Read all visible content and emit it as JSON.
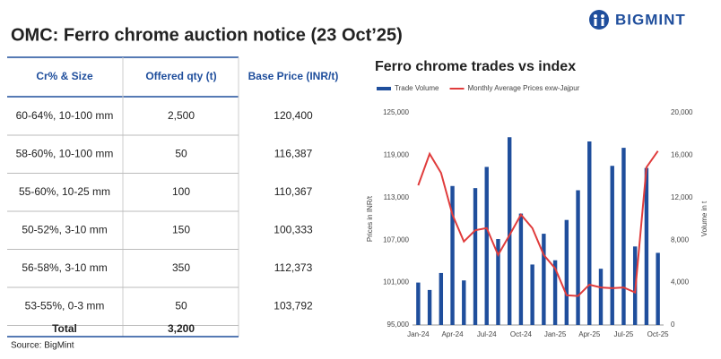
{
  "header": {
    "title": "OMC: Ferro chrome auction notice (23 Oct’25)",
    "logo": "BIGMINT"
  },
  "table": {
    "header": [
      "Cr% & Size",
      "Offered qty (t)",
      "Base Price (INR/t)"
    ],
    "rows": [
      [
        "60-64%,  10-100 mm",
        "2,500",
        "120,400"
      ],
      [
        "58-60%, 10-100 mm",
        "50",
        "116,387"
      ],
      [
        "55-60%, 10-25 mm",
        "100",
        "110,367"
      ],
      [
        "50-52%, 3-10 mm",
        "150",
        "100,333"
      ],
      [
        "56-58%, 3-10 mm",
        "350",
        "112,373"
      ],
      [
        "53-55%, 0-3 mm",
        "50",
        "103,792"
      ]
    ],
    "total": [
      "Total",
      "3,200"
    ]
  },
  "source": "Source: BigMint",
  "chart_data": {
    "type": "bar",
    "title": "Ferro chrome trades vs index",
    "ylabel": "Prices in INR/t",
    "y2label": "Volume in t",
    "categories": [
      "Jan-24",
      null,
      null,
      "Apr-24",
      null,
      null,
      "Jul-24",
      null,
      null,
      "Oct-24",
      null,
      null,
      "Jan-25",
      null,
      null,
      "Apr-25",
      null,
      null,
      "Jul-25",
      null,
      null,
      "Oct-25"
    ],
    "series": [
      {
        "name": "Trade Volume",
        "type": "bar",
        "axis": "y2",
        "color": "#1f4e9c",
        "values": [
          4000,
          3300,
          4900,
          13100,
          4200,
          12900,
          14900,
          8100,
          17700,
          10500,
          5700,
          8600,
          6100,
          9900,
          12700,
          17300,
          5300,
          15000,
          16700,
          7400,
          14800,
          6800
        ]
      },
      {
        "name": "Monthly Average Prices exw-Jajpur",
        "type": "line",
        "axis": "y",
        "color": "#e03c3c",
        "values": [
          114750,
          119200,
          116500,
          110600,
          106800,
          108400,
          108700,
          104900,
          107700,
          110600,
          108700,
          104900,
          103000,
          99200,
          99100,
          100700,
          100300,
          100200,
          100300,
          99600,
          117300,
          119600
        ]
      }
    ],
    "ylim": [
      95000,
      125000
    ],
    "yticks": [
      {
        "value": 95000,
        "label": "95,000"
      },
      {
        "value": 101000,
        "label": "101,000"
      },
      {
        "value": 107000,
        "label": "107,000"
      },
      {
        "value": 113000,
        "label": "113,000"
      },
      {
        "value": 119000,
        "label": "119,000"
      },
      {
        "value": 125000,
        "label": "125,000"
      }
    ],
    "y2lim": [
      0,
      20000
    ],
    "y2ticks": [
      0,
      {
        "value": 4000,
        "label": "4,000"
      },
      {
        "value": 8000,
        "label": "8,000"
      },
      {
        "value": 12000,
        "label": "12,000"
      },
      {
        "value": 16000,
        "label": "16,000"
      },
      {
        "value": 20000,
        "label": "20,000"
      }
    ],
    "grid": false,
    "legend": "top"
  }
}
